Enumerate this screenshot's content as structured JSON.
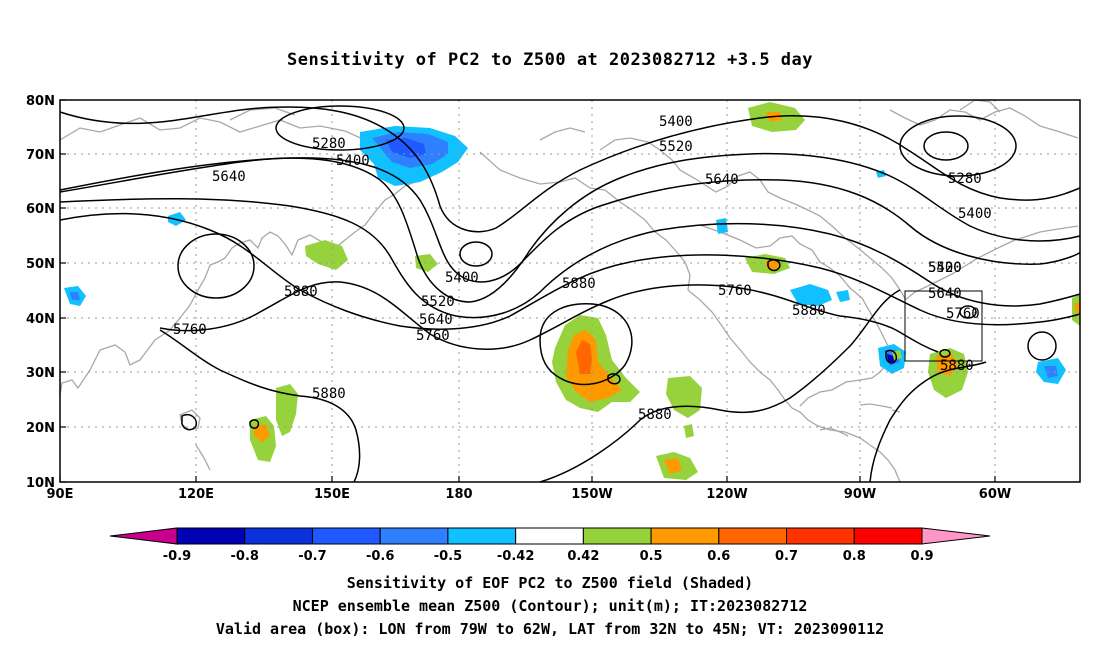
{
  "title": "Sensitivity of PC2 to Z500 at 2023082712 +3.5 day",
  "axes": {
    "lat_labels": [
      "80N",
      "70N",
      "60N",
      "50N",
      "40N",
      "30N",
      "20N",
      "10N"
    ],
    "lon_labels": [
      "90E",
      "120E",
      "150E",
      "180",
      "150W",
      "120W",
      "90W",
      "60W"
    ]
  },
  "contour_labels": [
    "5280",
    "5400",
    "5640",
    "5400",
    "5520",
    "5640",
    "5760",
    "5880",
    "5400",
    "5520",
    "5640",
    "5760",
    "5880",
    "5880",
    "5400",
    "5280",
    "5400",
    "5520",
    "5640",
    "5760",
    "5880",
    "5760",
    "5880"
  ],
  "colorbar": {
    "labels": [
      "-0.9",
      "-0.8",
      "-0.7",
      "-0.6",
      "-0.5",
      "-0.42",
      "0.42",
      "0.5",
      "0.6",
      "0.7",
      "0.8",
      "0.9"
    ],
    "colors": [
      "#0000b4",
      "#0a32dc",
      "#1e5aff",
      "#2e80ff",
      "#10c0ff",
      "#ffffff",
      "#96d23c",
      "#ff9900",
      "#ff6600",
      "#ff3300",
      "#ff0000"
    ],
    "low_end_color": "#c8008c",
    "high_end_color": "#ff96c8"
  },
  "captions": {
    "line1": "Sensitivity of EOF PC2 to Z500 field (Shaded)",
    "line2": "NCEP ensemble mean Z500 (Contour); unit(m); IT:2023082712",
    "line3": "Valid area (box): LON from 79W to 62W, LAT from 32N to 45N; VT: 2023090112"
  }
}
